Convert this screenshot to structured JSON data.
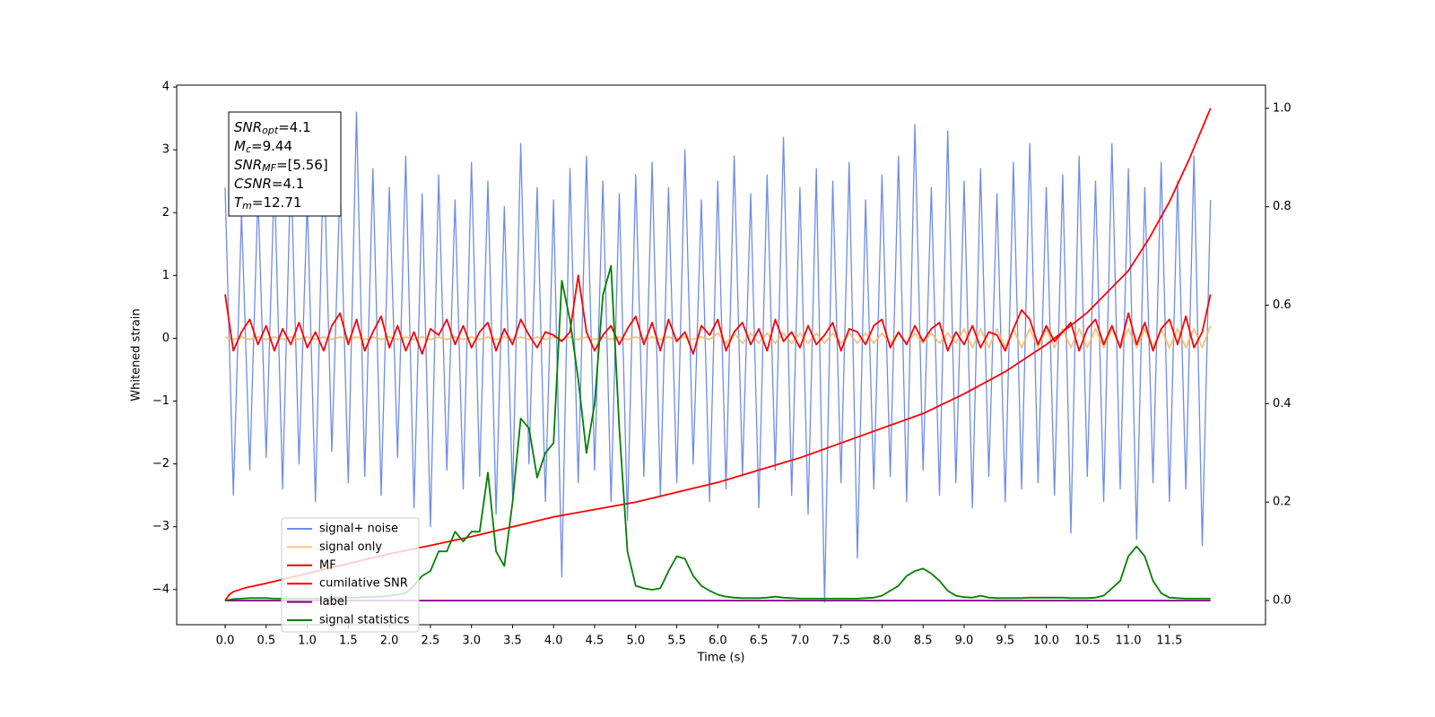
{
  "chart_data": {
    "type": "line",
    "xlabel": "Time (s)",
    "ylabel": "Whitened strain",
    "xlim": [
      -0.59,
      12.67
    ],
    "ylim": [
      -4.56,
      4.03
    ],
    "y2lim": [
      -0.049,
      1.047
    ],
    "xticks": [
      {
        "value": 0,
        "label": "0.0"
      },
      {
        "value": 0.5,
        "label": "0.5"
      },
      {
        "value": 1,
        "label": "1.0"
      },
      {
        "value": 1.5,
        "label": "1.5"
      },
      {
        "value": 2,
        "label": "2.0"
      },
      {
        "value": 2.5,
        "label": "2.5"
      },
      {
        "value": 3,
        "label": "3.0"
      },
      {
        "value": 3.5,
        "label": "3.5"
      },
      {
        "value": 4,
        "label": "4.0"
      },
      {
        "value": 4.5,
        "label": "4.5"
      },
      {
        "value": 5,
        "label": "5.0"
      },
      {
        "value": 5.5,
        "label": "5.5"
      },
      {
        "value": 6,
        "label": "6.0"
      },
      {
        "value": 6.5,
        "label": "6.5"
      },
      {
        "value": 7,
        "label": "7.0"
      },
      {
        "value": 7.5,
        "label": "7.5"
      },
      {
        "value": 8,
        "label": "8.0"
      },
      {
        "value": 8.5,
        "label": "8.5"
      },
      {
        "value": 9,
        "label": "9.0"
      },
      {
        "value": 9.5,
        "label": "9.5"
      },
      {
        "value": 10,
        "label": "10.0"
      },
      {
        "value": 10.5,
        "label": "10.5"
      },
      {
        "value": 11,
        "label": "11.0"
      },
      {
        "value": 11.5,
        "label": "11.5"
      }
    ],
    "yticks": [
      {
        "value": -4,
        "label": "−4"
      },
      {
        "value": -3,
        "label": "−3"
      },
      {
        "value": -2,
        "label": "−2"
      },
      {
        "value": -1,
        "label": "−1"
      },
      0,
      1,
      2,
      3,
      4
    ],
    "y2ticks": [
      {
        "value": 0,
        "label": "0.0"
      },
      {
        "value": 0.2,
        "label": "0.2"
      },
      {
        "value": 0.4,
        "label": "0.4"
      },
      {
        "value": 0.6,
        "label": "0.6"
      },
      {
        "value": 0.8,
        "label": "0.8"
      },
      {
        "value": 1,
        "label": "1.0"
      }
    ],
    "legend": "lower left",
    "annotation": [
      {
        "symbol": "SNR",
        "subscript": "opt",
        "text": "=4.1"
      },
      {
        "symbol": "M",
        "subscript": "c",
        "text": "=9.44"
      },
      {
        "symbol": "SNR",
        "subscript": "MF",
        "text": "=[5.56]"
      },
      {
        "symbol": "CSNR",
        "text": "=4.1"
      },
      {
        "symbol": "T",
        "subscript": "m",
        "text": "=12.71"
      }
    ],
    "x": [
      0,
      0.1,
      0.2,
      0.3,
      0.4,
      0.5,
      0.6,
      0.7,
      0.8,
      0.9,
      1,
      1.1,
      1.2,
      1.3,
      1.4,
      1.5,
      1.6,
      1.7,
      1.8,
      1.9,
      2,
      2.1,
      2.2,
      2.3,
      2.4,
      2.5,
      2.6,
      2.7,
      2.8,
      2.9,
      3,
      3.1,
      3.2,
      3.3,
      3.4,
      3.5,
      3.6,
      3.7,
      3.8,
      3.9,
      4,
      4.1,
      4.2,
      4.3,
      4.4,
      4.5,
      4.6,
      4.7,
      4.8,
      4.9,
      5,
      5.1,
      5.2,
      5.3,
      5.4,
      5.5,
      5.6,
      5.7,
      5.8,
      5.9,
      6,
      6.1,
      6.2,
      6.3,
      6.4,
      6.5,
      6.6,
      6.7,
      6.8,
      6.9,
      7,
      7.1,
      7.2,
      7.3,
      7.4,
      7.5,
      7.6,
      7.7,
      7.8,
      7.9,
      8,
      8.1,
      8.2,
      8.3,
      8.4,
      8.5,
      8.6,
      8.7,
      8.8,
      8.9,
      9,
      9.1,
      9.2,
      9.3,
      9.4,
      9.5,
      9.6,
      9.7,
      9.8,
      9.9,
      10,
      10.1,
      10.2,
      10.3,
      10.4,
      10.5,
      10.6,
      10.7,
      10.8,
      10.9,
      11,
      11.1,
      11.2,
      11.3,
      11.4,
      11.5,
      11.6,
      11.7,
      11.8,
      11.9,
      12
    ],
    "series": [
      {
        "name": "signal+ noise",
        "color": "#6f8ce6",
        "axis": "y",
        "values": [
          2.4,
          -2.5,
          2.0,
          -2.1,
          2.3,
          -1.9,
          2.6,
          -2.4,
          2.8,
          -2.0,
          2.2,
          -2.6,
          3.0,
          -1.8,
          2.5,
          -2.3,
          3.6,
          -2.2,
          2.7,
          -2.5,
          2.4,
          -1.9,
          2.9,
          -2.7,
          2.3,
          -3.0,
          2.6,
          -2.1,
          2.2,
          -2.4,
          2.8,
          -2.2,
          2.5,
          -2.8,
          2.1,
          -2.5,
          3.1,
          -2.0,
          2.4,
          -2.6,
          2.2,
          -3.8,
          2.7,
          -2.3,
          2.9,
          -2.1,
          2.5,
          -2.6,
          2.3,
          -2.9,
          2.6,
          -2.2,
          2.8,
          -2.5,
          2.4,
          -2.3,
          3.0,
          -2.0,
          2.2,
          -2.6,
          2.5,
          -2.4,
          2.9,
          -2.2,
          2.3,
          -2.7,
          2.6,
          -2.1,
          3.2,
          -2.5,
          2.4,
          -2.8,
          2.7,
          -4.2,
          2.5,
          -2.3,
          2.8,
          -3.5,
          2.2,
          -2.4,
          2.6,
          -2.2,
          2.9,
          -2.6,
          3.4,
          -2.1,
          2.4,
          -2.5,
          3.3,
          -2.3,
          2.5,
          -2.7,
          2.7,
          -2.2,
          2.3,
          -2.6,
          2.8,
          -2.4,
          3.1,
          -2.3,
          2.4,
          -2.5,
          2.6,
          -3.1,
          2.9,
          -2.2,
          2.5,
          -2.6,
          3.1,
          -2.4,
          2.7,
          -3.2,
          2.4,
          -2.3,
          2.8,
          -2.6,
          2.5,
          -2.4,
          2.9,
          -3.3,
          2.2
        ]
      },
      {
        "name": "signal only",
        "color": "#f5b860",
        "axis": "y",
        "values": [
          0.02,
          -0.02,
          0.02,
          -0.02,
          0.02,
          -0.02,
          0.02,
          -0.02,
          0.02,
          -0.02,
          0.02,
          -0.02,
          0.02,
          -0.02,
          0.02,
          -0.02,
          0.02,
          -0.02,
          0.02,
          -0.02,
          0.02,
          -0.02,
          0.02,
          -0.02,
          0.02,
          -0.02,
          0.02,
          -0.02,
          0.02,
          -0.02,
          0.02,
          -0.02,
          0.02,
          -0.02,
          0.02,
          -0.02,
          0.02,
          -0.02,
          0.02,
          -0.02,
          0.02,
          -0.02,
          0.02,
          -0.02,
          0.02,
          -0.02,
          0.02,
          -0.02,
          0.02,
          -0.02,
          0.02,
          -0.02,
          0.02,
          -0.02,
          0.02,
          -0.02,
          0.02,
          -0.02,
          0.02,
          -0.02,
          0.08,
          -0.08,
          0.08,
          -0.08,
          0.08,
          -0.08,
          0.08,
          -0.08,
          0.08,
          -0.08,
          0.08,
          -0.08,
          0.08,
          -0.08,
          0.08,
          -0.08,
          0.08,
          -0.08,
          0.08,
          -0.08,
          0.08,
          -0.08,
          0.08,
          -0.08,
          0.08,
          -0.08,
          0.08,
          -0.08,
          0.08,
          -0.08,
          0.15,
          -0.15,
          0.15,
          -0.15,
          0.15,
          -0.15,
          0.15,
          -0.15,
          0.15,
          -0.15,
          0.15,
          -0.15,
          0.15,
          -0.15,
          0.15,
          -0.15,
          0.15,
          -0.15,
          0.15,
          -0.15,
          0.15,
          -0.15,
          0.15,
          -0.15,
          0.15,
          -0.15,
          0.15,
          -0.15,
          0.15,
          -0.15,
          0.2
        ]
      },
      {
        "name": "MF",
        "color": "#ff0000",
        "axis": "y",
        "values": [
          0.7,
          -0.2,
          0.1,
          0.3,
          -0.1,
          0.2,
          -0.2,
          0.15,
          -0.1,
          0.25,
          -0.15,
          0.1,
          -0.2,
          0.2,
          0.4,
          -0.1,
          0.3,
          -0.2,
          0.1,
          0.35,
          -0.15,
          0.2,
          -0.2,
          0.1,
          -0.25,
          0.15,
          0.05,
          0.3,
          -0.1,
          0.2,
          -0.15,
          0.1,
          0.25,
          -0.2,
          0.15,
          -0.1,
          0.3,
          0.05,
          -0.15,
          0.1,
          0.05,
          -0.05,
          0.1,
          1.0,
          0.1,
          -0.2,
          0.05,
          0.2,
          -0.1,
          0.15,
          0.35,
          -0.1,
          0.25,
          -0.2,
          0.3,
          -0.05,
          0.1,
          -0.25,
          0.2,
          0.05,
          0.3,
          -0.2,
          0.1,
          0.25,
          -0.1,
          0.15,
          -0.2,
          0.3,
          -0.05,
          0.1,
          -0.15,
          0.2,
          -0.1,
          0.05,
          0.25,
          -0.2,
          0.15,
          0.1,
          -0.1,
          0.2,
          0.3,
          -0.15,
          0.1,
          -0.1,
          0.2,
          -0.05,
          0.15,
          0.25,
          -0.2,
          0.1,
          -0.1,
          0.2,
          -0.15,
          0.1,
          0.05,
          -0.2,
          0.15,
          0.45,
          0.3,
          -0.1,
          0.2,
          -0.05,
          0.1,
          0.25,
          -0.2,
          0.15,
          0.3,
          -0.1,
          0.2,
          -0.15,
          0.4,
          -0.1,
          0.25,
          -0.2,
          0.15,
          0.3,
          -0.1,
          0.35,
          -0.15,
          0.1,
          0.7
        ]
      },
      {
        "name": "cumilative SNR",
        "color": "#ff0000",
        "axis": "y2",
        "x": [
          0,
          0.05,
          0.1,
          0.25,
          0.5,
          1,
          1.5,
          2,
          2.5,
          3,
          3.5,
          4,
          4.5,
          5,
          5.5,
          6,
          6.5,
          7,
          7.5,
          8,
          8.5,
          9,
          9.5,
          10,
          10.5,
          11,
          11.25,
          11.5,
          11.75,
          12
        ],
        "values": [
          0,
          0.012,
          0.018,
          0.026,
          0.035,
          0.055,
          0.075,
          0.095,
          0.112,
          0.13,
          0.15,
          0.17,
          0.185,
          0.2,
          0.22,
          0.24,
          0.265,
          0.29,
          0.32,
          0.35,
          0.38,
          0.42,
          0.465,
          0.52,
          0.585,
          0.67,
          0.735,
          0.81,
          0.9,
          1.0
        ]
      },
      {
        "name": "label",
        "color": "#800080",
        "axis": "y2",
        "x": [
          0,
          12
        ],
        "values": [
          0,
          0
        ]
      },
      {
        "name": "signal statistics",
        "color": "#008000",
        "axis": "y2",
        "values": [
          0,
          0.003,
          0.004,
          0.005,
          0.005,
          0.005,
          0.004,
          0.004,
          0.004,
          0.004,
          0.004,
          0.004,
          0.004,
          0.005,
          0.006,
          0.006,
          0.006,
          0.007,
          0.008,
          0.008,
          0.01,
          0.012,
          0.015,
          0.03,
          0.05,
          0.06,
          0.1,
          0.1,
          0.14,
          0.12,
          0.14,
          0.14,
          0.26,
          0.1,
          0.07,
          0.2,
          0.37,
          0.35,
          0.25,
          0.3,
          0.32,
          0.65,
          0.57,
          0.45,
          0.3,
          0.4,
          0.62,
          0.68,
          0.35,
          0.1,
          0.03,
          0.025,
          0.022,
          0.025,
          0.06,
          0.09,
          0.085,
          0.05,
          0.03,
          0.02,
          0.012,
          0.008,
          0.006,
          0.005,
          0.005,
          0.005,
          0.006,
          0.008,
          0.006,
          0.005,
          0.004,
          0.004,
          0.004,
          0.004,
          0.004,
          0.004,
          0.004,
          0.004,
          0.005,
          0.006,
          0.01,
          0.02,
          0.03,
          0.05,
          0.06,
          0.065,
          0.055,
          0.04,
          0.02,
          0.01,
          0.007,
          0.006,
          0.01,
          0.006,
          0.005,
          0.005,
          0.005,
          0.005,
          0.006,
          0.006,
          0.006,
          0.006,
          0.006,
          0.005,
          0.005,
          0.005,
          0.006,
          0.01,
          0.025,
          0.04,
          0.09,
          0.11,
          0.09,
          0.04,
          0.015,
          0.006,
          0.005,
          0.004,
          0.004,
          0.004,
          0.004
        ]
      }
    ]
  }
}
